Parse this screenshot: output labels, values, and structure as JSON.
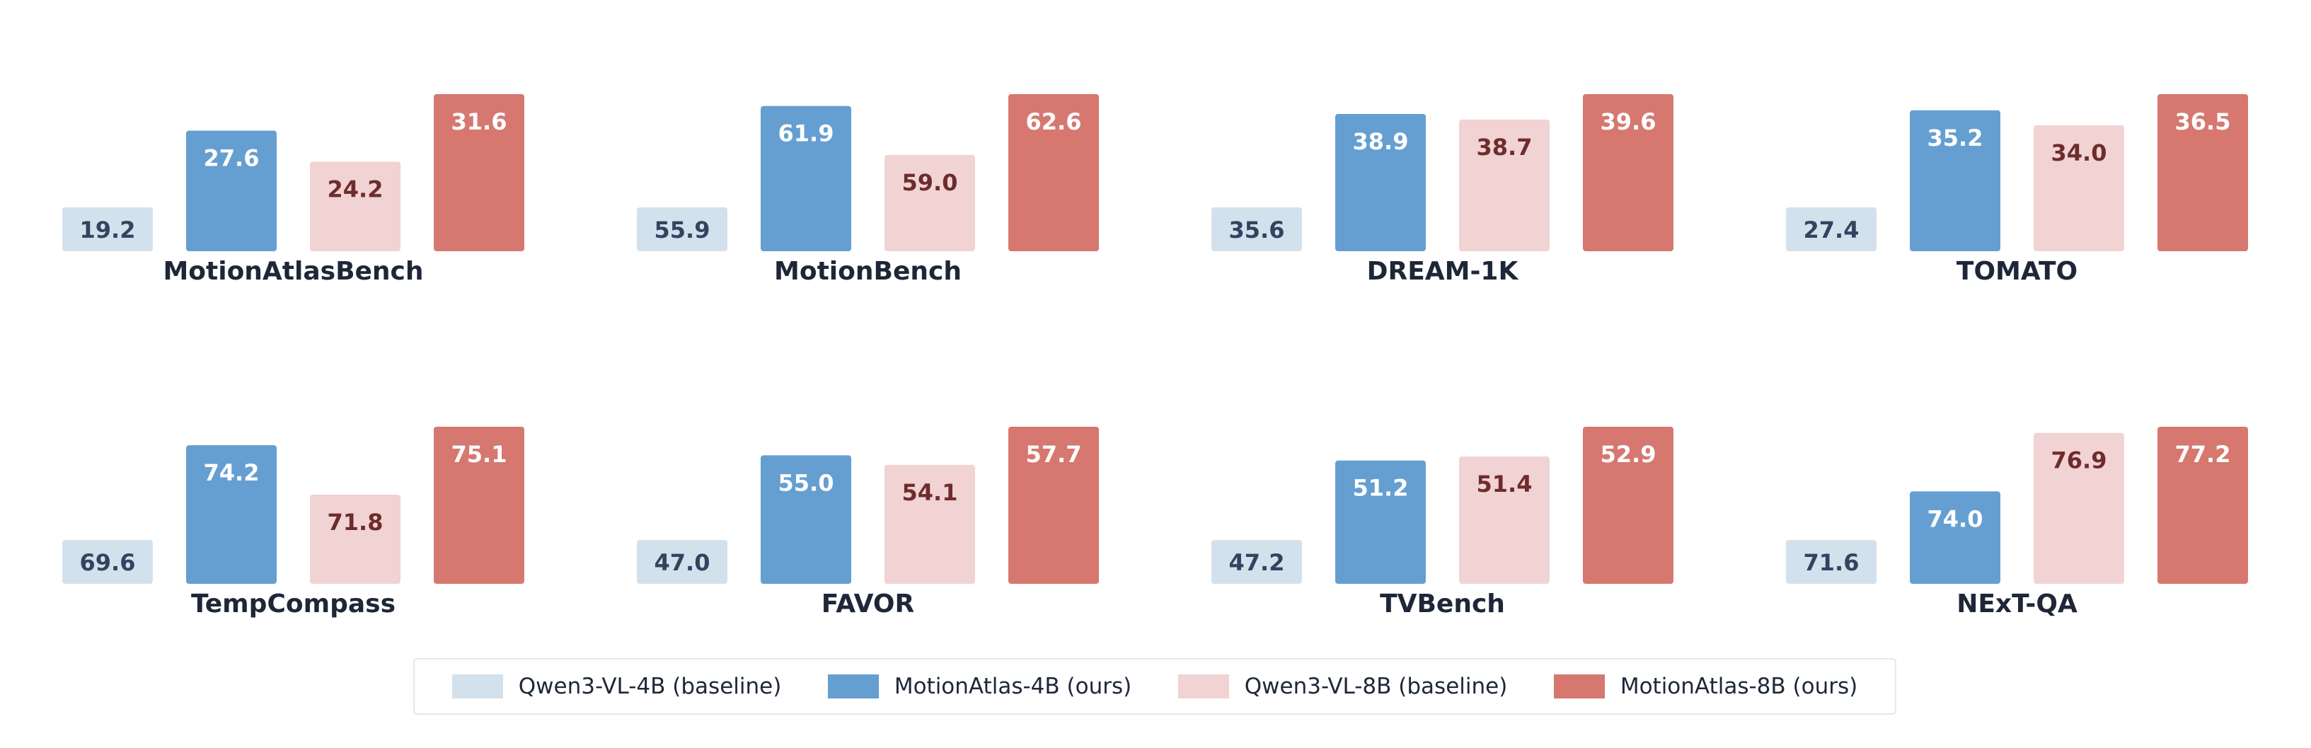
{
  "chart_data": {
    "type": "bar",
    "series": [
      {
        "name": "Qwen3-VL-4B (baseline)",
        "color": "#d3e1ed",
        "label_color": "#32445f"
      },
      {
        "name": "MotionAtlas-4B (ours)",
        "color": "#659fd1",
        "label_color": "#ffffff"
      },
      {
        "name": "Qwen3-VL-8B (baseline)",
        "color": "#f1d3d3",
        "label_color": "#6e2c2c"
      },
      {
        "name": "MotionAtlas-8B (ours)",
        "color": "#d67870",
        "label_color": "#ffffff"
      }
    ],
    "panels": [
      {
        "title": "MotionAtlasBench",
        "values": [
          19.2,
          27.6,
          24.2,
          31.6
        ]
      },
      {
        "title": "MotionBench",
        "values": [
          55.9,
          61.9,
          59.0,
          62.6
        ]
      },
      {
        "title": "DREAM-1K",
        "values": [
          35.6,
          38.9,
          38.7,
          39.6
        ]
      },
      {
        "title": "TOMATO",
        "values": [
          27.4,
          35.2,
          34.0,
          36.5
        ]
      },
      {
        "title": "TempCompass",
        "values": [
          69.6,
          74.2,
          71.8,
          75.1
        ]
      },
      {
        "title": "FAVOR",
        "values": [
          47.0,
          55.0,
          54.1,
          57.7
        ]
      },
      {
        "title": "TVBench",
        "values": [
          47.2,
          51.2,
          51.4,
          52.9
        ]
      },
      {
        "title": "NExT-QA",
        "values": [
          71.6,
          74.0,
          76.9,
          77.2
        ]
      }
    ],
    "legend_position": "bottom-center",
    "grid": false
  }
}
